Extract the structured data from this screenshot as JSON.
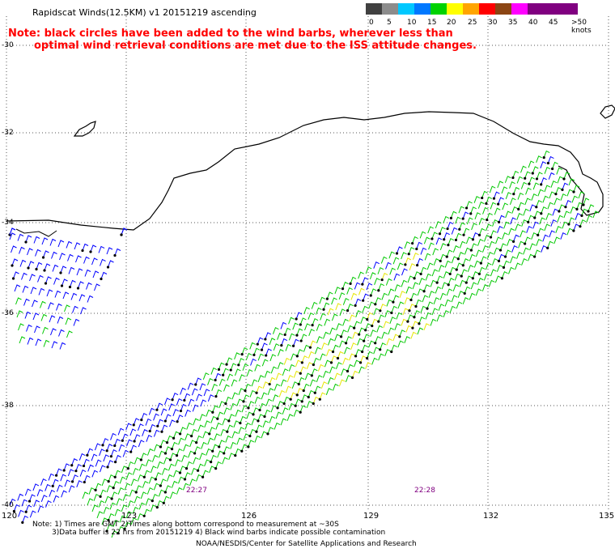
{
  "header": {
    "title": "Rapidscat Winds(12.5KM) v1 20151219 ascending",
    "note_line1": "Note: black circles have been added to the wind barbs, wherever less than",
    "note_line2": "optimal wind retrieval conditions are met due to the ISS attitude changes."
  },
  "colorbar": {
    "labels": [
      "0",
      "5",
      "10",
      "15",
      "20",
      "25",
      "30",
      "35",
      "40",
      "45",
      ">50 knots"
    ],
    "colors": [
      "#404040",
      "#8c8c8c",
      "#00c8ff",
      "#0078ff",
      "#00d200",
      "#ffff00",
      "#ffa500",
      "#ff0000",
      "#8b4513",
      "#ff00ff",
      "#800080"
    ]
  },
  "axes": {
    "lat_labels": [
      "-30",
      "-32",
      "-34",
      "-36",
      "-38",
      "-40"
    ],
    "lon_labels": [
      "120",
      "123",
      "126",
      "129",
      "132",
      "135"
    ]
  },
  "time_labels": [
    {
      "text": "22:27",
      "color": "#800080"
    },
    {
      "text": "22:28",
      "color": "#800080"
    }
  ],
  "footer": {
    "line1": "Note: 1) Times are GMT 2)Times along bottom correspond to measurement at ~30S",
    "line2": "3)Data buffer is 22 hrs from 20151219 4) Black wind barbs indicate possible contamination",
    "line3": "NOAA/NESDIS/Center for Satellite Applications and Research"
  },
  "legend_colors": {
    "wind_green": "#00c800",
    "wind_blue": "#0000ff",
    "wind_yellow": "#e6e600",
    "coast": "#000000",
    "flagged": "#000000"
  }
}
